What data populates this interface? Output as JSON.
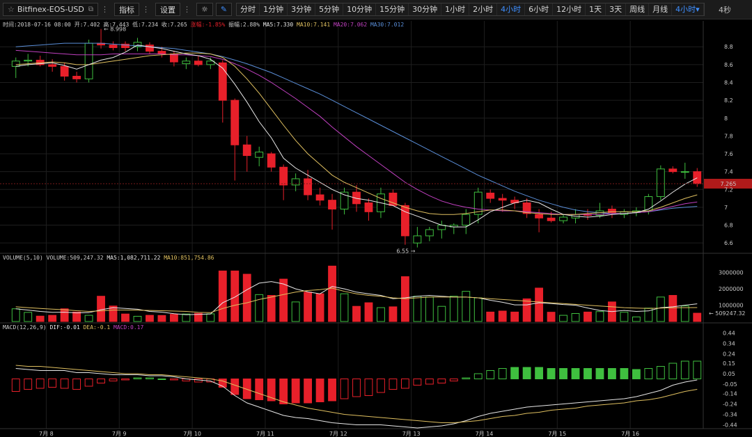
{
  "toolbar": {
    "symbol": "Bitfinex-EOS-USD",
    "indicators_label": "指标",
    "settings_label": "设置",
    "periods": [
      "分时",
      "1分钟",
      "3分钟",
      "5分钟",
      "10分钟",
      "15分钟",
      "30分钟",
      "1小时",
      "2小时",
      "4小时",
      "6小时",
      "12小时",
      "1天",
      "3天",
      "周线",
      "月线"
    ],
    "active_period": "4小时",
    "period_dropdown": "4小时",
    "right_label": "4秒"
  },
  "info_bar": {
    "time": "时间:2018-07-16 08:00",
    "open": "开:7.402",
    "high": "高:7.443",
    "low": "低:7.234",
    "close": "收:7.265",
    "change": "涨幅:-1.85%",
    "amplitude": "振幅:2.88%",
    "ma5": "MA5:7.330",
    "ma10": "MA10:7.141",
    "ma20": "MA20:7.062",
    "ma30": "MA30:7.012"
  },
  "volume_bar": {
    "title": "VOLUME(5,10)",
    "volume": "VOLUME:509,247.32",
    "ma5": "MA5:1,082,711.22",
    "ma10": "MA10:851,754.86"
  },
  "macd_bar": {
    "title": "MACD(12,26,9)",
    "dif": "DIF:-0.01",
    "dea": "DEA:-0.1",
    "macd": "MACD:0.17"
  },
  "colors": {
    "up": "#3fbf3f",
    "down": "#e8202a",
    "ma5": "#e8e8e8",
    "ma10": "#e0c060",
    "ma20": "#c040c0",
    "ma30": "#5a8ed8",
    "dea": "#e0c060",
    "dif": "#e8e8e8"
  },
  "chart_data": {
    "type": "candlestick",
    "x_labels": [
      "7月 8",
      "7月 9",
      "7月 10",
      "7月 11",
      "7月 12",
      "7月 13",
      "7月 14",
      "7月 15",
      "7月 16"
    ],
    "price_axis": {
      "range": [
        6.5,
        8.95
      ],
      "ticks": [
        6.6,
        6.8,
        7,
        7.2,
        7.4,
        7.6,
        7.8,
        8,
        8.2,
        8.4,
        8.6,
        8.8
      ]
    },
    "current_price": 7.265,
    "annotations": {
      "high_label": "8.998",
      "low_label": "6.55"
    },
    "ohlc": [
      [
        8.58,
        8.68,
        8.45,
        8.64
      ],
      [
        8.64,
        8.72,
        8.58,
        8.65
      ],
      [
        8.65,
        8.7,
        8.58,
        8.6
      ],
      [
        8.6,
        8.66,
        8.52,
        8.58
      ],
      [
        8.58,
        8.62,
        8.42,
        8.47
      ],
      [
        8.47,
        8.52,
        8.4,
        8.44
      ],
      [
        8.44,
        8.88,
        8.4,
        8.84
      ],
      [
        8.84,
        9.0,
        8.78,
        8.82
      ],
      [
        8.82,
        8.86,
        8.76,
        8.79
      ],
      [
        8.83,
        8.86,
        8.75,
        8.79
      ],
      [
        8.8,
        8.9,
        8.75,
        8.85
      ],
      [
        8.82,
        8.85,
        8.72,
        8.75
      ],
      [
        8.75,
        8.8,
        8.68,
        8.72
      ],
      [
        8.72,
        8.75,
        8.58,
        8.63
      ],
      [
        8.61,
        8.68,
        8.55,
        8.64
      ],
      [
        8.64,
        8.7,
        8.58,
        8.6
      ],
      [
        8.6,
        8.68,
        8.55,
        8.64
      ],
      [
        8.62,
        8.65,
        7.95,
        8.2
      ],
      [
        8.2,
        8.22,
        7.3,
        7.7
      ],
      [
        7.7,
        7.8,
        7.4,
        7.58
      ],
      [
        7.56,
        7.68,
        7.46,
        7.62
      ],
      [
        7.6,
        7.62,
        7.4,
        7.45
      ],
      [
        7.45,
        7.48,
        7.08,
        7.25
      ],
      [
        7.25,
        7.38,
        7.18,
        7.32
      ],
      [
        7.32,
        7.42,
        7.08,
        7.14
      ],
      [
        7.14,
        7.22,
        7.02,
        7.08
      ],
      [
        7.08,
        7.15,
        6.75,
        6.98
      ],
      [
        6.98,
        7.22,
        6.92,
        7.17
      ],
      [
        7.17,
        7.25,
        6.95,
        7.04
      ],
      [
        7.05,
        7.1,
        6.85,
        6.95
      ],
      [
        6.95,
        7.22,
        6.88,
        7.15
      ],
      [
        7.16,
        7.2,
        7.02,
        7.02
      ],
      [
        7.02,
        7.05,
        6.58,
        6.68
      ],
      [
        6.6,
        6.78,
        6.55,
        6.68
      ],
      [
        6.68,
        6.78,
        6.62,
        6.75
      ],
      [
        6.75,
        6.85,
        6.65,
        6.8
      ],
      [
        6.78,
        6.82,
        6.7,
        6.8
      ],
      [
        6.8,
        6.98,
        6.7,
        6.92
      ],
      [
        6.92,
        7.22,
        6.82,
        7.17
      ],
      [
        7.16,
        7.2,
        7.05,
        7.1
      ],
      [
        7.1,
        7.15,
        6.95,
        7.08
      ],
      [
        7.08,
        7.12,
        6.98,
        7.05
      ],
      [
        7.05,
        7.1,
        6.88,
        6.93
      ],
      [
        6.92,
        6.98,
        6.72,
        6.88
      ],
      [
        6.88,
        6.95,
        6.83,
        6.85
      ],
      [
        6.85,
        6.92,
        6.82,
        6.89
      ],
      [
        6.88,
        6.98,
        6.82,
        6.92
      ],
      [
        6.92,
        6.98,
        6.86,
        6.91
      ],
      [
        6.91,
        7.05,
        6.88,
        6.96
      ],
      [
        6.98,
        7.02,
        6.88,
        6.94
      ],
      [
        6.92,
        6.98,
        6.88,
        6.95
      ],
      [
        6.94,
        7.0,
        6.9,
        6.96
      ],
      [
        6.96,
        7.15,
        6.92,
        7.12
      ],
      [
        7.12,
        7.47,
        7.08,
        7.43
      ],
      [
        7.43,
        7.46,
        7.38,
        7.4
      ],
      [
        7.4,
        7.5,
        7.32,
        7.4
      ],
      [
        7.4,
        7.44,
        7.23,
        7.265
      ]
    ],
    "ma5": [
      8.58,
      8.6,
      8.61,
      8.62,
      8.59,
      8.55,
      8.6,
      8.65,
      8.68,
      8.74,
      8.82,
      8.8,
      8.78,
      8.75,
      8.72,
      8.7,
      8.66,
      8.56,
      8.38,
      8.18,
      7.96,
      7.78,
      7.55,
      7.44,
      7.36,
      7.28,
      7.2,
      7.14,
      7.1,
      7.08,
      7.05,
      7.02,
      6.95,
      6.9,
      6.85,
      6.8,
      6.78,
      6.78,
      6.86,
      6.95,
      7.0,
      7.05,
      7.08,
      7.05,
      6.98,
      6.92,
      6.9,
      6.89,
      6.9,
      6.92,
      6.93,
      6.94,
      6.98,
      7.07,
      7.17,
      7.26,
      7.33
    ],
    "ma10": [
      8.6,
      8.61,
      8.62,
      8.63,
      8.62,
      8.6,
      8.6,
      8.62,
      8.64,
      8.66,
      8.68,
      8.7,
      8.71,
      8.72,
      8.73,
      8.73,
      8.72,
      8.68,
      8.58,
      8.44,
      8.28,
      8.1,
      7.92,
      7.75,
      7.6,
      7.48,
      7.36,
      7.28,
      7.22,
      7.16,
      7.1,
      7.05,
      7.0,
      6.96,
      6.93,
      6.92,
      6.92,
      6.93,
      6.95,
      6.97,
      6.97,
      6.96,
      6.94,
      6.93,
      6.92,
      6.92,
      6.92,
      6.93,
      6.94,
      6.95,
      6.95,
      6.95,
      6.96,
      7.0,
      7.05,
      7.1,
      7.14
    ],
    "ma20": [
      8.76,
      8.75,
      8.74,
      8.73,
      8.72,
      8.71,
      8.71,
      8.71,
      8.72,
      8.72,
      8.72,
      8.72,
      8.72,
      8.71,
      8.71,
      8.7,
      8.69,
      8.66,
      8.61,
      8.55,
      8.48,
      8.4,
      8.31,
      8.22,
      8.12,
      8.02,
      7.9,
      7.79,
      7.68,
      7.58,
      7.48,
      7.38,
      7.28,
      7.2,
      7.13,
      7.07,
      7.03,
      7.0,
      6.98,
      6.97,
      6.96,
      6.96,
      6.95,
      6.94,
      6.93,
      6.92,
      6.92,
      6.92,
      6.92,
      6.93,
      6.93,
      6.94,
      6.95,
      6.98,
      7.01,
      7.04,
      7.06
    ],
    "ma30": [
      8.8,
      8.81,
      8.82,
      8.83,
      8.84,
      8.84,
      8.84,
      8.84,
      8.83,
      8.82,
      8.81,
      8.8,
      8.79,
      8.78,
      8.76,
      8.74,
      8.72,
      8.69,
      8.65,
      8.61,
      8.56,
      8.51,
      8.45,
      8.39,
      8.33,
      8.27,
      8.2,
      8.13,
      8.06,
      7.99,
      7.92,
      7.85,
      7.78,
      7.71,
      7.64,
      7.57,
      7.5,
      7.43,
      7.36,
      7.3,
      7.24,
      7.18,
      7.13,
      7.08,
      7.04,
      7.0,
      6.97,
      6.95,
      6.94,
      6.93,
      6.93,
      6.94,
      6.95,
      6.97,
      6.99,
      7.0,
      7.01
    ],
    "volume": {
      "axis_ticks": [
        1000000,
        2000000,
        3000000
      ],
      "current_label": "509247.32",
      "values": [
        780000,
        560000,
        330000,
        380000,
        780000,
        580000,
        380000,
        1550000,
        950000,
        460000,
        320000,
        380000,
        370000,
        440000,
        460000,
        500000,
        470000,
        3100000,
        3100000,
        2900000,
        1650000,
        1600000,
        2600000,
        1200000,
        1800000,
        1700000,
        3400000,
        1700000,
        930000,
        1150000,
        850000,
        900000,
        2750000,
        1550000,
        1500000,
        930000,
        1550000,
        1850000,
        1450000,
        580000,
        640000,
        580000,
        1390000,
        2050000,
        570000,
        380000,
        490000,
        580000,
        610000,
        1200000,
        570000,
        280000,
        820000,
        1500000,
        1600000,
        950000,
        509247
      ],
      "ma5": [
        780000,
        700000,
        620000,
        560000,
        570000,
        530000,
        540000,
        720000,
        850000,
        800000,
        750000,
        620000,
        570000,
        480000,
        420000,
        440000,
        460000,
        1150000,
        1500000,
        1950000,
        2350000,
        2450000,
        2300000,
        2000000,
        1820000,
        1700000,
        2150000,
        2000000,
        1800000,
        1700000,
        1600000,
        1400000,
        1450000,
        1550000,
        1600000,
        1550000,
        1500000,
        1500000,
        1450000,
        1300000,
        1180000,
        1020000,
        1020000,
        1150000,
        1100000,
        1040000,
        1000000,
        830000,
        680000,
        610000,
        680000,
        620000,
        650000,
        850000,
        900000,
        1000000,
        1082711
      ],
      "ma10": [
        900000,
        850000,
        800000,
        760000,
        720000,
        660000,
        620000,
        650000,
        700000,
        700000,
        690000,
        680000,
        660000,
        640000,
        620000,
        560000,
        540000,
        800000,
        1000000,
        1150000,
        1350000,
        1500000,
        1650000,
        1800000,
        1900000,
        1950000,
        2050000,
        1850000,
        1700000,
        1600000,
        1550000,
        1450000,
        1400000,
        1450000,
        1500000,
        1500000,
        1500000,
        1500000,
        1450000,
        1400000,
        1350000,
        1300000,
        1250000,
        1200000,
        1150000,
        1100000,
        1050000,
        1000000,
        950000,
        900000,
        850000,
        820000,
        800000,
        820000,
        840000,
        850000,
        851754
      ]
    },
    "macd": {
      "axis_ticks": [
        -0.44,
        -0.34,
        -0.24,
        -0.14,
        -0.05,
        0.05,
        0.15,
        0.24,
        0.34,
        0.44
      ],
      "hist": [
        -0.12,
        -0.1,
        -0.09,
        -0.08,
        -0.09,
        -0.1,
        -0.07,
        -0.04,
        -0.02,
        -0.01,
        0.01,
        0.01,
        0.0,
        -0.01,
        -0.02,
        -0.03,
        -0.03,
        -0.08,
        -0.15,
        -0.19,
        -0.2,
        -0.21,
        -0.24,
        -0.23,
        -0.23,
        -0.22,
        -0.21,
        -0.19,
        -0.17,
        -0.16,
        -0.13,
        -0.1,
        -0.09,
        -0.06,
        -0.05,
        -0.04,
        -0.02,
        0.01,
        0.05,
        0.08,
        0.1,
        0.11,
        0.11,
        0.11,
        0.1,
        0.1,
        0.1,
        0.1,
        0.1,
        0.1,
        0.1,
        0.09,
        0.1,
        0.12,
        0.15,
        0.17,
        0.17
      ],
      "dif": [
        0.1,
        0.09,
        0.08,
        0.08,
        0.08,
        0.06,
        0.06,
        0.05,
        0.04,
        0.04,
        0.04,
        0.03,
        0.03,
        0.02,
        0.0,
        -0.01,
        -0.02,
        -0.07,
        -0.16,
        -0.23,
        -0.27,
        -0.31,
        -0.35,
        -0.37,
        -0.38,
        -0.4,
        -0.42,
        -0.43,
        -0.44,
        -0.44,
        -0.44,
        -0.45,
        -0.46,
        -0.47,
        -0.46,
        -0.45,
        -0.43,
        -0.4,
        -0.36,
        -0.33,
        -0.31,
        -0.29,
        -0.27,
        -0.26,
        -0.25,
        -0.24,
        -0.23,
        -0.22,
        -0.21,
        -0.2,
        -0.19,
        -0.17,
        -0.14,
        -0.11,
        -0.06,
        -0.03,
        -0.01
      ],
      "dea": [
        0.13,
        0.12,
        0.12,
        0.11,
        0.1,
        0.09,
        0.08,
        0.07,
        0.06,
        0.05,
        0.05,
        0.04,
        0.04,
        0.03,
        0.02,
        0.01,
        0.0,
        -0.02,
        -0.06,
        -0.1,
        -0.14,
        -0.18,
        -0.22,
        -0.25,
        -0.28,
        -0.3,
        -0.32,
        -0.34,
        -0.35,
        -0.36,
        -0.37,
        -0.38,
        -0.39,
        -0.4,
        -0.41,
        -0.42,
        -0.42,
        -0.41,
        -0.4,
        -0.38,
        -0.36,
        -0.35,
        -0.33,
        -0.32,
        -0.3,
        -0.29,
        -0.28,
        -0.26,
        -0.25,
        -0.24,
        -0.23,
        -0.21,
        -0.2,
        -0.18,
        -0.15,
        -0.12,
        -0.1
      ]
    }
  }
}
